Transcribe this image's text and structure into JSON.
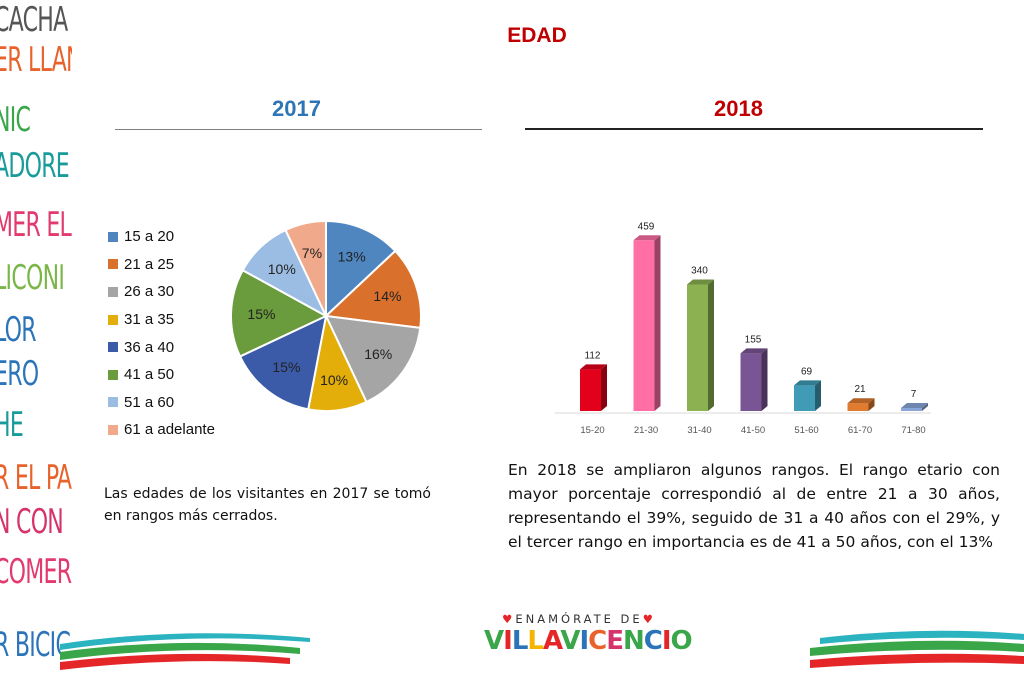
{
  "slide": {
    "title": "EDAD",
    "year_left": "2017",
    "year_right": "2018",
    "text_left": "Las edades de los visitantes en 2017 se tomó en rangos más cerrados.",
    "text_right": "En 2018 se ampliaron algunos rangos. El rango etario con mayor porcentaje correspondió al de entre 21 a 30 años, representando el 39%, seguido de 31 a 40 años con el 29%, y el tercer rango en importancia es de 41 a 50 años, con el 13%"
  },
  "side_words": [
    "CACHA",
    "ER LLAN",
    "NIC",
    "ADORE",
    "MER EL F",
    "LICONI",
    "LOR",
    "ERO",
    "HE",
    "R EL PARQ",
    "N CON",
    "COMER",
    "R BICIC"
  ],
  "side_colors": [
    "#555555",
    "#e8632b",
    "#3aa64a",
    "#1a9b9b",
    "#e23a6f",
    "#7ab648",
    "#2b74b9",
    "#2b74b9",
    "#1a9b9b",
    "#e8632b",
    "#d6336c",
    "#e23a6f",
    "#2b74b9"
  ],
  "logo": {
    "top": "ENAMÓRATE DE",
    "letters": [
      "V",
      "I",
      "L",
      "L",
      "A",
      "V",
      "I",
      "C",
      "E",
      "N",
      "C",
      "I",
      "O"
    ],
    "colors": [
      "#3aa64a",
      "#e52628",
      "#2b74b9",
      "#f4b400",
      "#e52628",
      "#3aa64a",
      "#2b74b9",
      "#e8632b",
      "#d6336c",
      "#3aa64a",
      "#2b74b9",
      "#e52628",
      "#3aa64a"
    ]
  },
  "chart_data": [
    {
      "type": "pie",
      "categories": [
        "15 a 20",
        "21 a 25",
        "26 a 30",
        "31 a 35",
        "36 a 40",
        "41 a 50",
        "51 a 60",
        "61 a adelante"
      ],
      "values": [
        13,
        14,
        16,
        10,
        15,
        15,
        10,
        7
      ],
      "labels": [
        "13%",
        "14%",
        "16%",
        "10%",
        "15%",
        "15%",
        "10%",
        "7%"
      ],
      "colors": [
        "#4f86c0",
        "#d9702c",
        "#a5a5a5",
        "#e3ad0a",
        "#3b5ba8",
        "#6a9b3c",
        "#9cbde3",
        "#f0a98a"
      ],
      "legend": "left"
    },
    {
      "type": "bar",
      "categories": [
        "15-20",
        "21-30",
        "31-40",
        "41-50",
        "51-60",
        "61-70",
        "71-80"
      ],
      "values": [
        112,
        459,
        340,
        155,
        69,
        21,
        7
      ],
      "colors": [
        "#e3001b",
        "#ff6fa6",
        "#8bb150",
        "#7a5595",
        "#3f9bb6",
        "#e07b30",
        "#8aa6d9"
      ],
      "ylim": [
        0,
        500
      ],
      "grid": false
    }
  ]
}
